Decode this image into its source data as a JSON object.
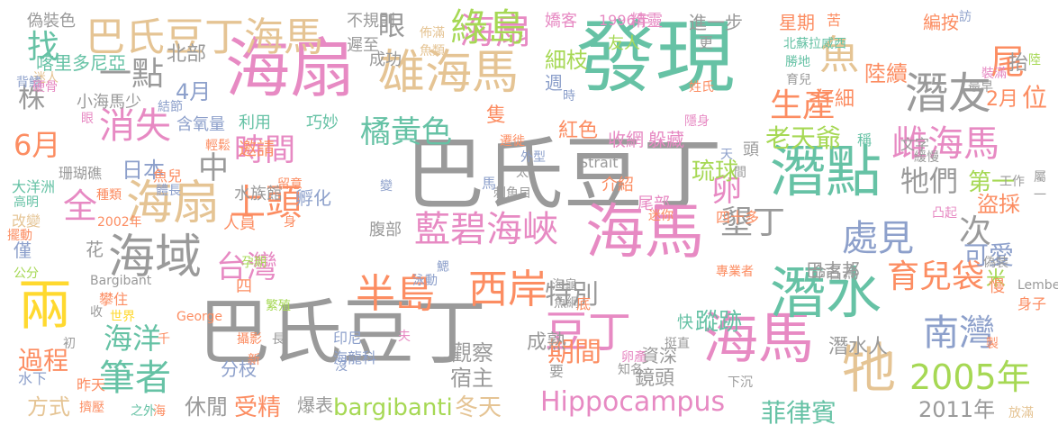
{
  "colors": {
    "gray": "#9a9a9a",
    "green": "#66c2a5",
    "tan": "#e5c494",
    "orange": "#fc8d62",
    "blue": "#8da0cb",
    "pink": "#e78ac3",
    "lime": "#a6d854",
    "yellow": "#ffd92f"
  },
  "words": [
    "發現",
    "巴氏豆丁",
    "巴氏豆丁",
    "海扇",
    "海馬",
    "潛點",
    "海馬",
    "潛水",
    "雄海馬",
    "海扇",
    "海域",
    "牠",
    "巴氏豆丁海馬",
    "兩",
    "海扇",
    "潛友",
    "豆丁",
    "綠島",
    "藍碧海峽",
    "西岸",
    "半島",
    "雌海馬",
    "南灣",
    "2005年",
    "Hippocampus",
    "上頭",
    "消失",
    "筆者",
    "橘黃色",
    "生產",
    "尾",
    "處見",
    "時間",
    "特別",
    "海洋",
    "墾丁",
    "育兒袋",
    "台灣",
    "6月",
    "株",
    "一點",
    "找",
    "全",
    "中",
    "魚",
    "眼",
    "卵",
    "期間",
    "牠們",
    "次",
    "可愛",
    "位",
    "過程",
    "bargibanti",
    "菲律賓",
    "老天爺",
    "蹤跡",
    "方式",
    "受精",
    "冬天",
    "休閒",
    "北部",
    "4月",
    "2月",
    "紅色",
    "日本",
    "琉球",
    "米",
    "第一",
    "盜採",
    "潛水人",
    "2011年",
    "觀察",
    "宿主",
    "成熟",
    "鏡頭",
    "資深",
    "分枝",
    "爆表",
    "陸續",
    "編按",
    "進一步",
    "精靈",
    "嬌客",
    "1996年",
    "友人",
    "細枝",
    "週",
    "仔細",
    "印尼",
    "海龍科",
    "巴吉邦",
    "偽裝色",
    "不規則",
    "遲至",
    "佈滿",
    "魚類",
    "星期",
    "苦",
    "訪",
    "北蘇拉威西",
    "勝地",
    "裝滿",
    "抬",
    "陸",
    "更",
    "育兒",
    "喀里多尼亞",
    "迷人",
    "背鰭",
    "硬骨",
    "小海馬少",
    "結節",
    "含氧量",
    "利用",
    "巧妙",
    "成功",
    "眼",
    "隻",
    "時",
    "最早",
    "姓氏",
    "收網",
    "躲藏",
    "隱身",
    "緩慢",
    "遷徙",
    "輕鬆",
    "邀請",
    "天",
    "頭",
    "間",
    "工作",
    "變",
    "刺魚目",
    "孵化",
    "珊瑚礁",
    "大洋洲",
    "高明",
    "種類",
    "改變",
    "魚兒",
    "體長",
    "水族館",
    "留意",
    "馬",
    "Strait",
    "介紹",
    "尾部",
    "迷你",
    "四十多",
    "凸起",
    "擺動",
    "2002年",
    "人員",
    "身",
    "腹部",
    "花",
    "僅",
    "四",
    "專業者",
    "命名為",
    "偽裝",
    "慢",
    "公分",
    "Bargibant",
    "孕期",
    "泳動",
    "鰓",
    "Lembeh",
    "身子",
    "攀住",
    "收",
    "繁殖",
    "海龜",
    "魚網",
    "底",
    "快",
    "世界",
    "George",
    "千",
    "初",
    "攝影",
    "長",
    "夫",
    "卵產",
    "知名",
    "挺直",
    "製",
    "水下",
    "昨天",
    "新",
    "沒",
    "下沉",
    "擠壓",
    "之外",
    "海",
    "放滿",
    "外型",
    "稱",
    "文字",
    "屬",
    "一",
    "要",
    "太",
    "稱"
  ]
}
